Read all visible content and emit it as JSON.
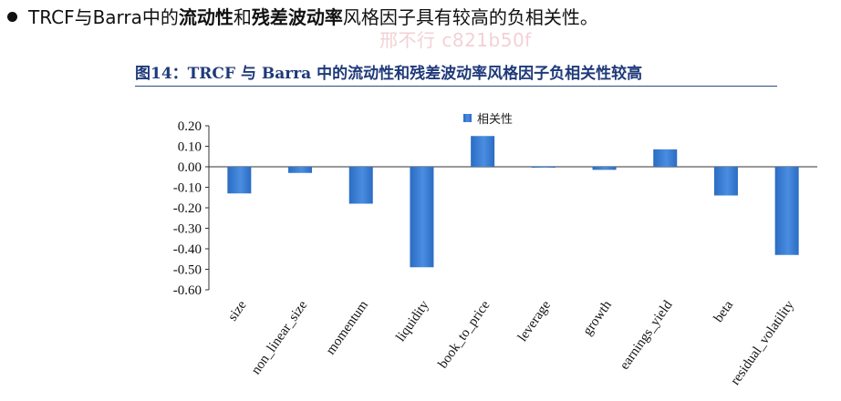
{
  "header": {
    "bullet_text_1": "TRCF与Barra中的",
    "bullet_bold_1": "流动性",
    "bullet_text_2": "和",
    "bullet_bold_2": "残差波动率",
    "bullet_text_3": "风格因子具有较高的负相关性。"
  },
  "watermark": "邢不行 c821b50f",
  "figure": {
    "title": "图14：TRCF 与 Barra 中的流动性和残差波动率风格因子负相关性较高"
  },
  "colors": {
    "bar": "#2b6cc4",
    "bar_highlight": "#4a8de0",
    "title": "#1f3a7a"
  },
  "chart_data": {
    "type": "bar",
    "categories": [
      "size",
      "non_linear_size",
      "momentum",
      "liquidity",
      "book_to_price",
      "leverage",
      "growth",
      "earnings_yield",
      "beta",
      "residual_volatility"
    ],
    "series": [
      {
        "name": "相关性",
        "values": [
          -0.13,
          -0.03,
          -0.18,
          -0.49,
          0.15,
          -0.002,
          -0.015,
          0.085,
          -0.14,
          -0.43
        ]
      }
    ],
    "ylim": [
      -0.6,
      0.2
    ],
    "yticks": [
      "0.20",
      "0.10",
      "0.00",
      "-0.10",
      "-0.20",
      "-0.30",
      "-0.40",
      "-0.50",
      "-0.60"
    ],
    "ytick_values": [
      0.2,
      0.1,
      0.0,
      -0.1,
      -0.2,
      -0.3,
      -0.4,
      -0.5,
      -0.6
    ],
    "legend_position": "top-center",
    "grid": false
  }
}
